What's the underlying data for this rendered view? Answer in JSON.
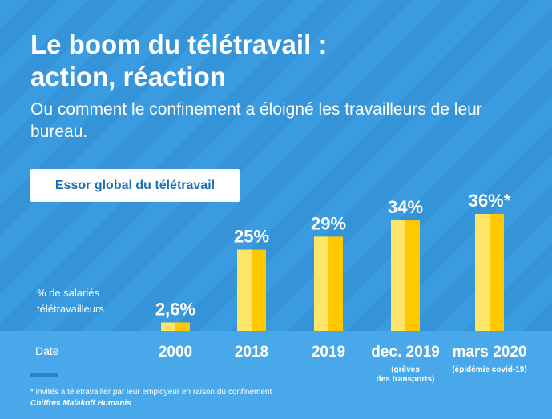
{
  "header": {
    "title_line1": "Le boom du télétravail :",
    "title_line2": "action, réaction",
    "subtitle": "Ou comment le confinement a éloigné les travailleurs de leur bureau."
  },
  "tag": {
    "label": "Essor global du télétravail"
  },
  "axis": {
    "y_label_line1": "% de salariés",
    "y_label_line2": "télétravailleurs",
    "x_label": "Date"
  },
  "footer": {
    "footnote": "* invités à télétravailler par leur employeur en raison du confinement",
    "source": "Chiffres Malakoff Humanis"
  },
  "colors": {
    "background": "#3a9be0",
    "stripe": "#3593d8",
    "axis_band": "#49a8ea",
    "bar_main": "#ffc800",
    "bar_highlight": "#ffe46a",
    "tag_text": "#1a6fb8",
    "legend_bar": "#2b84c8"
  },
  "chart_data": {
    "type": "bar",
    "categories": [
      "2000",
      "2018",
      "2019",
      "dec. 2019",
      "mars 2020"
    ],
    "category_labels": [
      "2000",
      "2018",
      "2019",
      "dec. 2019",
      "mars 2020"
    ],
    "category_notes": [
      "",
      "",
      "",
      "(grèves\ndes transports)",
      "(épidémie covid-19)"
    ],
    "values": [
      2.6,
      25,
      29,
      34,
      36
    ],
    "value_labels": [
      "2,6%",
      "25%",
      "29%",
      "34%",
      "36%*"
    ],
    "ylabel": "% de salariés télétravailleurs",
    "xlabel": "Date",
    "ylim": [
      0,
      36
    ],
    "grid": false
  }
}
